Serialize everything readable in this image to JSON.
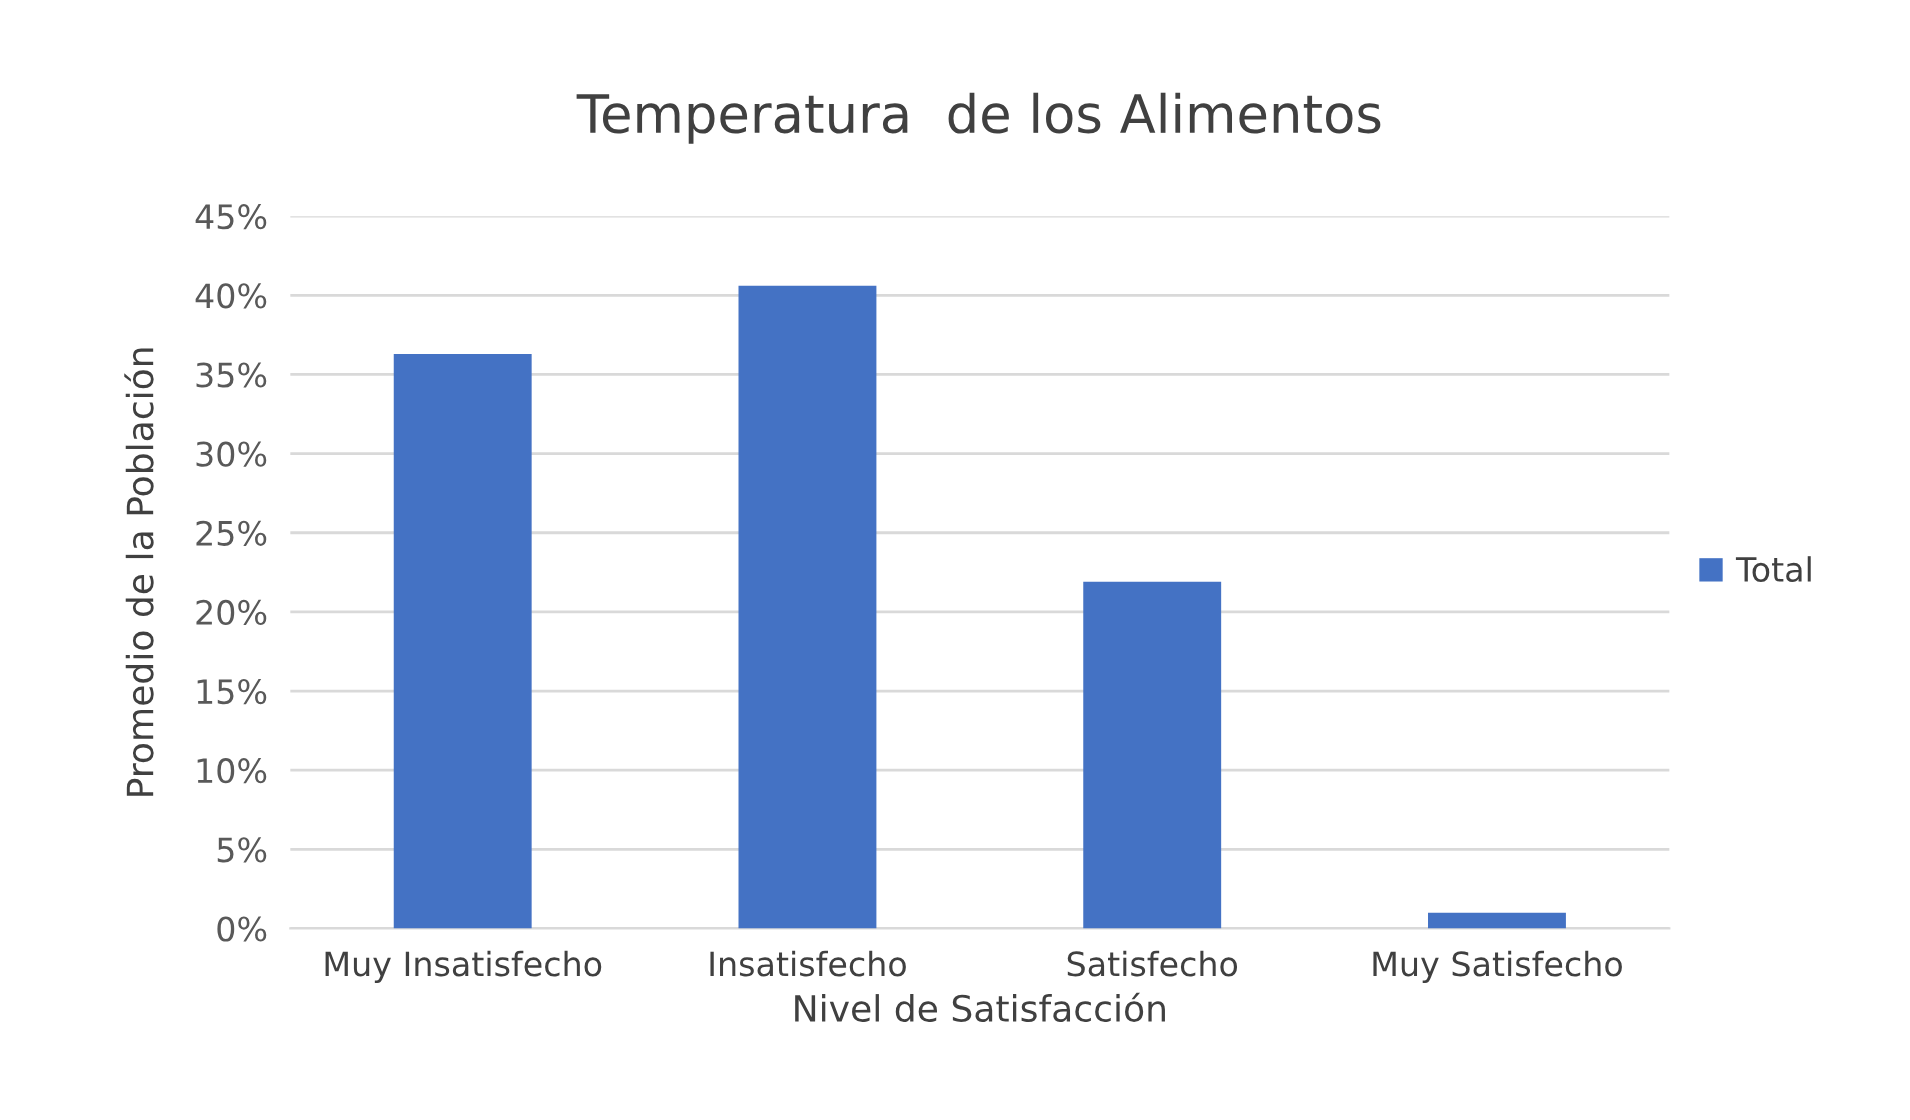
{
  "chart_data": {
    "type": "bar",
    "title": "Temperatura  de los Alimentos",
    "xlabel": "Nivel de Satisfacción",
    "ylabel": "Promedio de la Población",
    "categories": [
      "Muy Insatisfecho",
      "Insatisfecho",
      "Satisfecho",
      "Muy Satisfecho"
    ],
    "series": [
      {
        "name": "Total",
        "color": "#4472c4",
        "values": [
          36.3,
          40.6,
          21.9,
          1.0
        ]
      }
    ],
    "ylim": [
      0,
      45
    ],
    "yticks": [
      {
        "value": 0,
        "label": "0%"
      },
      {
        "value": 5,
        "label": "5%"
      },
      {
        "value": 10,
        "label": "10%"
      },
      {
        "value": 15,
        "label": "15%"
      },
      {
        "value": 20,
        "label": "20%"
      },
      {
        "value": 25,
        "label": "25%"
      },
      {
        "value": 30,
        "label": "30%"
      },
      {
        "value": 35,
        "label": "35%"
      },
      {
        "value": 40,
        "label": "40%"
      },
      {
        "value": 45,
        "label": "45%"
      }
    ],
    "grid": "y",
    "legend": "right"
  }
}
